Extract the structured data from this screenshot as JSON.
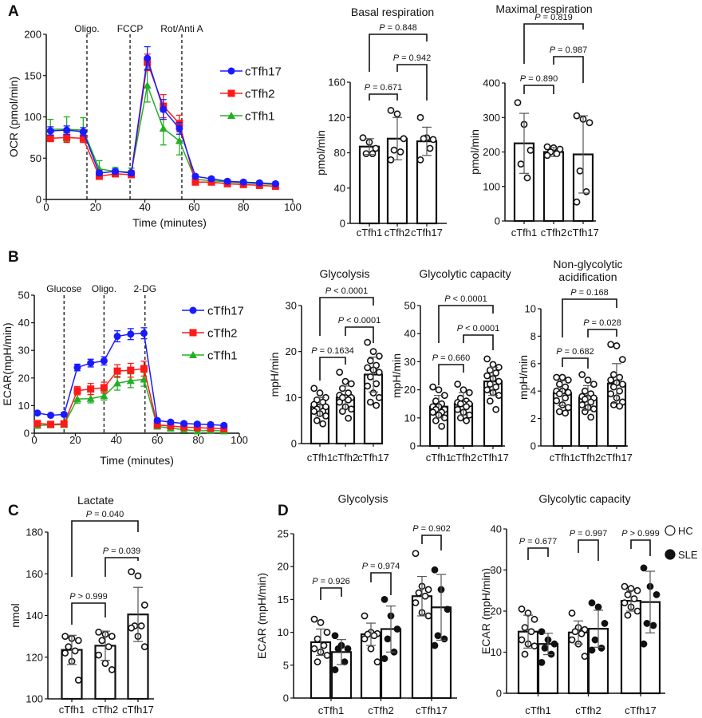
{
  "panels": [
    "A",
    "B",
    "C",
    "D"
  ],
  "chart_data": [
    {
      "type": "line",
      "panel": "A",
      "title": "",
      "xlabel": "Time (minutes)",
      "ylabel": "OCR (pmol/min)",
      "xlim": [
        0,
        100
      ],
      "ylim": [
        0,
        200
      ],
      "xticks": [
        0,
        20,
        40,
        60,
        80,
        100
      ],
      "yticks": [
        0,
        50,
        100,
        150,
        200
      ],
      "treatments": [
        {
          "label": "Oligo.",
          "time": 16.5
        },
        {
          "label": "FCCP",
          "time": 34
        },
        {
          "label": "Rot/Anti A",
          "time": 55
        }
      ],
      "legend_position": "right",
      "x": [
        1.7,
        8.3,
        15,
        21.5,
        28,
        34.5,
        41,
        47.5,
        54,
        60.5,
        67,
        73.5,
        80,
        86.5,
        93
      ],
      "series": [
        {
          "name": "cTfh17",
          "color": "#1a1aff",
          "marker": "circle",
          "values": [
            83,
            84,
            82,
            32,
            34,
            32,
            171,
            109,
            86,
            28,
            25,
            22,
            21,
            20,
            19
          ],
          "error": [
            5,
            5,
            5,
            3,
            3,
            3,
            14,
            12,
            7,
            2,
            2,
            2,
            2,
            2,
            2
          ]
        },
        {
          "name": "cTfh2",
          "color": "#ff1a1a",
          "marker": "square",
          "values": [
            74,
            75,
            74,
            28,
            31,
            30,
            166,
            113,
            92,
            21,
            21,
            19,
            18,
            17,
            16
          ],
          "error": [
            4,
            6,
            5,
            3,
            3,
            3,
            10,
            14,
            10,
            2,
            2,
            2,
            2,
            2,
            2
          ]
        },
        {
          "name": "cTfh1",
          "color": "#22b022",
          "marker": "triangle",
          "values": [
            85,
            85,
            84,
            37,
            34,
            33,
            138,
            86,
            71,
            24,
            23,
            21,
            20,
            19,
            18
          ],
          "error": [
            12,
            15,
            15,
            10,
            5,
            5,
            20,
            20,
            17,
            2,
            2,
            2,
            2,
            2,
            2
          ]
        }
      ]
    },
    {
      "type": "bar",
      "title": "Basal respiration",
      "ylabel": "pmol/min",
      "ylim": [
        0,
        160
      ],
      "yticks": [
        0,
        40,
        80,
        120,
        160
      ],
      "categories": [
        "cTfh1",
        "cTfh2",
        "cTfh17"
      ],
      "series": [
        {
          "means": [
            87,
            96,
            93
          ],
          "sd": [
            9,
            24,
            16
          ],
          "points": [
            [
              97,
              92,
              85,
              79,
              79
            ],
            [
              128,
              124,
              96,
              83,
              81,
              72
            ],
            [
              120,
              97,
              95,
              96,
              85,
              72
            ]
          ]
        }
      ],
      "comparisons": [
        {
          "from": 0,
          "to": 2,
          "p": "P = 0.848"
        },
        {
          "from": 1,
          "to": 2,
          "p": "P = 0.942"
        },
        {
          "from": 0,
          "to": 1,
          "p": "P = 0.671"
        }
      ]
    },
    {
      "type": "bar",
      "title": "Maximal respiration",
      "ylabel": "pmol/min",
      "ylim": [
        0,
        400
      ],
      "yticks": [
        0,
        100,
        200,
        300,
        400
      ],
      "categories": [
        "cTfh1",
        "cTfh2",
        "cTfh17"
      ],
      "series": [
        {
          "means": [
            225,
            200,
            193
          ],
          "sd": [
            87,
            13,
            112
          ],
          "points": [
            [
              343,
              280,
              205,
              165,
              125
            ],
            [
              215,
              212,
              208,
              200,
              195,
              190
            ],
            [
              305,
              295,
              285,
              145,
              85,
              55
            ]
          ]
        }
      ],
      "comparisons": [
        {
          "from": 0,
          "to": 2,
          "p": "P = 0.819"
        },
        {
          "from": 1,
          "to": 2,
          "p": "P = 0.987"
        },
        {
          "from": 0,
          "to": 1,
          "p": "P = 0.890"
        }
      ]
    },
    {
      "type": "line",
      "panel": "B",
      "title": "",
      "xlabel": "Time (minutes)",
      "ylabel": "ECAR(mpH/min)",
      "xlim": [
        0,
        100
      ],
      "ylim": [
        0,
        50
      ],
      "xticks": [
        0,
        20,
        40,
        60,
        80,
        100
      ],
      "yticks": [
        0,
        10,
        20,
        30,
        40,
        50
      ],
      "treatments": [
        {
          "label": "Glucose",
          "time": 14.5
        },
        {
          "label": "Oligo.",
          "time": 34
        },
        {
          "label": "2-DG",
          "time": 54
        }
      ],
      "legend_position": "right",
      "x": [
        1.5,
        8,
        14.5,
        21,
        27.5,
        34,
        40.5,
        47,
        53.5,
        60,
        66.5,
        73,
        79.5,
        86,
        92.5
      ],
      "series": [
        {
          "name": "cTfh17",
          "color": "#1a1aff",
          "marker": "circle",
          "values": [
            7.3,
            6.5,
            6.8,
            23.8,
            25.4,
            26.2,
            35.1,
            35.9,
            36.2,
            4.6,
            4,
            3.5,
            3.3,
            3.1,
            2.8
          ],
          "error": [
            0.6,
            0.6,
            0.6,
            1.2,
            1.4,
            1.5,
            2,
            2,
            2,
            0.6,
            0.6,
            0.6,
            0.6,
            0.6,
            0.6
          ]
        },
        {
          "name": "cTfh2",
          "color": "#ff1a1a",
          "marker": "square",
          "values": [
            3.5,
            3.2,
            3.4,
            15.4,
            16,
            16.5,
            22.5,
            22.8,
            23.4,
            3,
            2.6,
            2.2,
            2,
            1.8,
            1.6
          ],
          "error": [
            1,
            1,
            1,
            1.5,
            2,
            2,
            2.3,
            2.5,
            2.7,
            1,
            1,
            1,
            1,
            1,
            1
          ]
        },
        {
          "name": "cTfh1",
          "color": "#22b022",
          "marker": "triangle",
          "values": [
            2.8,
            3,
            3.1,
            12.4,
            12.5,
            13.5,
            18.1,
            19,
            19.5,
            2.5,
            1.8,
            1.3,
            0.8,
            1,
            0.8
          ],
          "error": [
            1,
            1,
            1,
            1.5,
            1.5,
            1.5,
            2.5,
            2.5,
            2.5,
            1,
            1,
            1,
            1,
            1,
            1
          ]
        }
      ]
    },
    {
      "type": "bar",
      "title": "Glycolysis",
      "ylabel": "mpH/min",
      "ylim": [
        0,
        30
      ],
      "yticks": [
        0,
        10,
        20,
        30
      ],
      "categories": [
        "cTfh1",
        "cTfh2",
        "cTfh17"
      ],
      "series": [
        {
          "means": [
            8,
            10,
            15
          ],
          "sd": [
            2,
            2.5,
            3.8
          ],
          "points": [
            [
              12,
              11,
              10,
              9.5,
              9,
              8.5,
              8,
              8,
              7.5,
              7,
              7,
              6.5,
              6,
              5,
              4.3
            ],
            [
              15.5,
              13.5,
              13,
              12,
              11,
              10.5,
              10,
              10,
              10,
              9.5,
              9,
              8,
              7.5,
              7,
              5.5
            ],
            [
              22,
              20,
              19,
              18,
              17,
              16.5,
              16,
              15.5,
              14.5,
              13,
              12.5,
              11,
              10,
              9,
              8.3
            ]
          ]
        }
      ],
      "comparisons": [
        {
          "from": 0,
          "to": 2,
          "p": "P < 0.0001"
        },
        {
          "from": 1,
          "to": 2,
          "p": "P < 0.0001"
        },
        {
          "from": 0,
          "to": 1,
          "p": "P = 0.1634"
        }
      ]
    },
    {
      "type": "bar",
      "title": "Glycolytic capacity",
      "ylabel": "mpH/min",
      "ylim": [
        0,
        50
      ],
      "yticks": [
        0,
        10,
        20,
        30,
        40,
        50
      ],
      "categories": [
        "cTfh1",
        "cTfh2",
        "cTfh17"
      ],
      "series": [
        {
          "means": [
            14,
            15,
            23
          ],
          "sd": [
            4,
            4,
            5
          ],
          "points": [
            [
              21,
              20,
              18,
              16,
              15,
              14,
              14,
              13,
              13,
              12,
              12,
              11,
              10,
              9,
              7
            ],
            [
              22,
              20,
              19,
              17,
              16,
              15.5,
              15,
              15,
              15,
              14,
              13,
              12,
              11,
              10,
              9
            ],
            [
              31,
              29,
              28,
              27,
              26,
              25,
              24,
              23,
              22,
              21,
              20,
              19,
              18,
              16,
              13
            ]
          ]
        }
      ],
      "comparisons": [
        {
          "from": 0,
          "to": 2,
          "p": "P < 0.0001"
        },
        {
          "from": 1,
          "to": 2,
          "p": "P < 0.0001"
        },
        {
          "from": 0,
          "to": 1,
          "p": "P = 0.660"
        }
      ]
    },
    {
      "type": "bar",
      "title": "Non-glycolytic acidification",
      "title_lines": [
        "Non-glycolytic",
        "acidification"
      ],
      "ylabel": "mpH/min",
      "ylim": [
        0,
        10
      ],
      "yticks": [
        0,
        2,
        4,
        6,
        8,
        10
      ],
      "categories": [
        "cTfh1",
        "cTfh2",
        "cTfh17"
      ],
      "series": [
        {
          "means": [
            3.85,
            3.5,
            4.55
          ],
          "sd": [
            0.9,
            0.9,
            1.45
          ],
          "points": [
            [
              5,
              5,
              4.8,
              4.5,
              4.3,
              4,
              4,
              3.9,
              3.8,
              3.5,
              3.3,
              3,
              2.8,
              2.5,
              2.4
            ],
            [
              5.2,
              4.8,
              4.5,
              4,
              3.8,
              3.6,
              3.5,
              3.5,
              3.4,
              3.2,
              3,
              2.8,
              2.7,
              2.5,
              2.1
            ],
            [
              7.4,
              7.3,
              6.3,
              5.2,
              5,
              4.8,
              4.6,
              4.5,
              4.3,
              4,
              3.8,
              3.5,
              3.2,
              3,
              2.9
            ]
          ]
        }
      ],
      "comparisons": [
        {
          "from": 0,
          "to": 2,
          "p": "P = 0.168"
        },
        {
          "from": 1,
          "to": 2,
          "p": "P = 0.028"
        },
        {
          "from": 0,
          "to": 1,
          "p": "P = 0.682"
        }
      ]
    },
    {
      "type": "bar",
      "panel": "C",
      "title": "Lactate",
      "ylabel": "nmol",
      "ylim": [
        100,
        180
      ],
      "yticks": [
        100,
        120,
        140,
        160,
        180
      ],
      "categories": [
        "cTfh1",
        "cTfh2",
        "cTfh17"
      ],
      "series": [
        {
          "means": [
            123.5,
            125.5,
            140.5
          ],
          "sd": [
            7,
            7,
            13
          ],
          "points": [
            [
              130,
              129,
              128,
              125,
              123,
              122,
              118,
              109
            ],
            [
              132,
              131,
              130,
              128,
              125,
              121,
              117,
              114
            ],
            [
              161,
              159,
              145,
              135,
              135,
              134,
              130,
              125
            ]
          ]
        }
      ],
      "comparisons": [
        {
          "from": 0,
          "to": 2,
          "p": "P = 0.040"
        },
        {
          "from": 1,
          "to": 2,
          "p": "P = 0.039"
        },
        {
          "from": 0,
          "to": 1,
          "p": "P > 0.999"
        }
      ]
    },
    {
      "type": "bar",
      "panel": "D",
      "title": "Glycolysis",
      "ylabel": "ECAR (mpH/min)",
      "ylim": [
        0,
        25
      ],
      "yticks": [
        0,
        5,
        10,
        15,
        20,
        25
      ],
      "categories": [
        "cTfh1",
        "cTfh2",
        "cTfh17"
      ],
      "series": [
        {
          "name": "HC",
          "fill": "open",
          "means": [
            8.5,
            9.7,
            15.5
          ],
          "sd": [
            2,
            1.7,
            3
          ],
          "points": [
            [
              12,
              11.5,
              10,
              9,
              8,
              7.5,
              7,
              6.5,
              5.5
            ],
            [
              12.5,
              10,
              9.8,
              9.7,
              9.5,
              9,
              7.5,
              5.5
            ],
            [
              22,
              17,
              16.5,
              16,
              15.5,
              14.5,
              13,
              12.5
            ]
          ]
        },
        {
          "name": "SLE",
          "fill": "filled",
          "means": [
            7,
            10.5,
            13.8
          ],
          "sd": [
            1.9,
            3.5,
            5
          ],
          "points": [
            [
              9.5,
              8,
              7.5,
              7.5,
              5.5,
              4.3
            ],
            [
              15,
              12.5,
              10.5,
              9,
              7,
              6
            ],
            [
              19.5,
              16.5,
              13.5,
              9.5,
              9,
              8
            ]
          ]
        }
      ],
      "comparisons": [
        {
          "category": 0,
          "p": "P = 0.926"
        },
        {
          "category": 1,
          "p": "P = 0.974"
        },
        {
          "category": 2,
          "p": "P = 0.902"
        }
      ]
    },
    {
      "type": "bar",
      "title": "Glycolytic capacity",
      "ylabel": "ECAR (mpH/min)",
      "ylim": [
        0,
        40
      ],
      "yticks": [
        0,
        10,
        20,
        30,
        40
      ],
      "categories": [
        "cTfh1",
        "cTfh2",
        "cTfh17"
      ],
      "legend": [
        "HC",
        "SLE"
      ],
      "legend_position": "right",
      "series": [
        {
          "name": "HC",
          "fill": "open",
          "means": [
            15,
            14.8,
            22.5
          ],
          "sd": [
            4,
            2.8,
            2.5
          ],
          "points": [
            [
              20.5,
              19.5,
              18,
              16,
              15,
              13,
              12,
              11.5,
              9.5
            ],
            [
              19.5,
              16,
              15.5,
              15,
              14.5,
              13,
              12,
              9
            ],
            [
              26,
              25.5,
              25,
              24,
              23,
              22,
              21,
              20,
              19
            ]
          ]
        },
        {
          "name": "SLE",
          "fill": "filled",
          "means": [
            12,
            15.7,
            22.2
          ],
          "sd": [
            2.6,
            4.5,
            7.5
          ],
          "points": [
            [
              15,
              13,
              12,
              11,
              9.5,
              7.5
            ],
            [
              22,
              21,
              17,
              13,
              11,
              10.5
            ],
            [
              30.5,
              26,
              24,
              17,
              16.5,
              12
            ]
          ]
        }
      ],
      "comparisons": [
        {
          "category": 0,
          "p": "P = 0.677"
        },
        {
          "category": 1,
          "p": "P = 0.997"
        },
        {
          "category": 2,
          "p": "P > 0.999"
        }
      ]
    }
  ]
}
